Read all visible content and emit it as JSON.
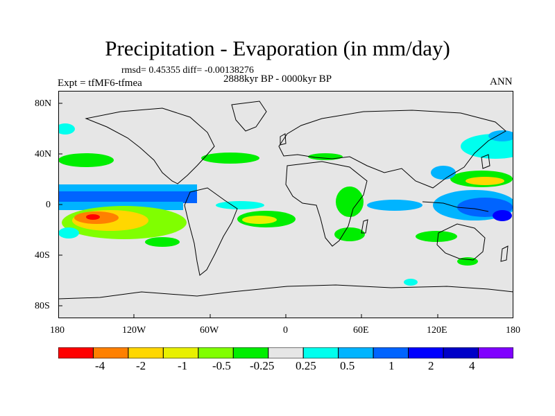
{
  "figure": {
    "title": "Precipitation - Evaporation (in mm/day)",
    "stats": "rmsd= 0.45355 diff= -0.00138276",
    "period": "2888kyr BP - 0000kyr BP",
    "experiment": "Expt = tfMF6-tfmea",
    "season": "ANN"
  },
  "axes": {
    "lat_labels": [
      "80N",
      "40N",
      "0",
      "40S",
      "80S"
    ],
    "lon_labels": [
      "180",
      "120W",
      "60W",
      "0",
      "60E",
      "120E",
      "180"
    ],
    "lon_range": [
      -180,
      180
    ],
    "lat_range": [
      -90,
      90
    ]
  },
  "colorbar": {
    "labels": [
      "-4",
      "-2",
      "-1",
      "-0.5",
      "-0.25",
      "0.25",
      "0.5",
      "1",
      "2",
      "4"
    ],
    "colors": [
      "#ff0000",
      "#ff8000",
      "#ffd700",
      "#e8f000",
      "#80ff00",
      "#00ee00",
      "#e6e6e6",
      "#00ffee",
      "#00b4ff",
      "#0064ff",
      "#0000ff",
      "#0000c8",
      "#8000ff"
    ]
  },
  "map_colors": {
    "ocean": "#e6e6e6",
    "coast": "#000000"
  }
}
